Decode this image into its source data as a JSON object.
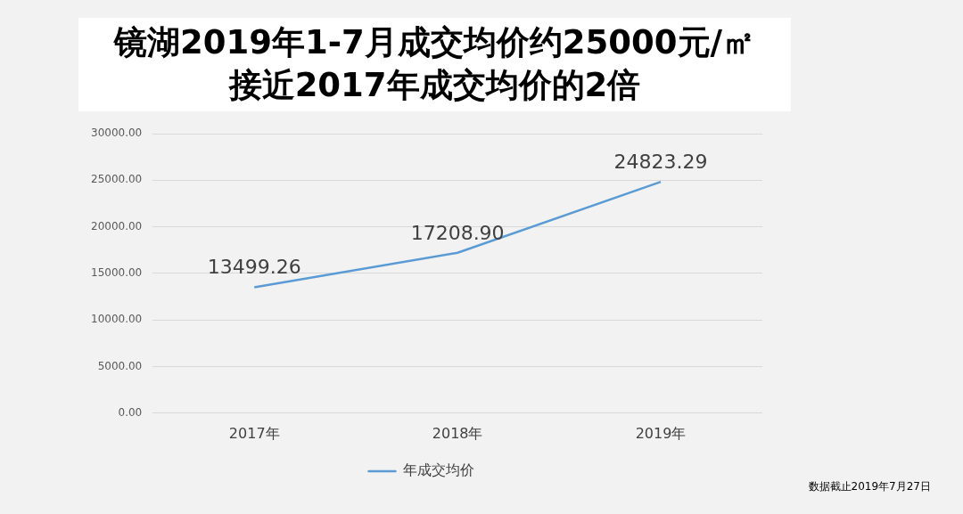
{
  "chart_data": {
    "type": "line",
    "title": "镜湖2019年1-7月成交均价约25000元/㎡接近2017年成交均价的2倍",
    "categories": [
      "2017年",
      "2018年",
      "2019年"
    ],
    "series": [
      {
        "name": "年成交均价",
        "color": "#5b9bd5",
        "values": [
          13499.26,
          17208.9,
          24823.29
        ]
      }
    ],
    "value_labels": [
      "13499.26",
      "17208.90",
      "24823.29"
    ],
    "ylim": [
      0,
      30000
    ],
    "yticks": [
      {
        "value": 0,
        "label": "0.00"
      },
      {
        "value": 5000,
        "label": "5000.00"
      },
      {
        "value": 10000,
        "label": "10000.00"
      },
      {
        "value": 15000,
        "label": "15000.00"
      },
      {
        "value": 20000,
        "label": "20000.00"
      },
      {
        "value": 25000,
        "label": "25000.00"
      },
      {
        "value": 30000,
        "label": "30000.00"
      }
    ],
    "grid": "y",
    "legend": "bottom",
    "marker": "none",
    "line_style": "solid",
    "annotations": [
      "数据截止2019年7月27日"
    ]
  }
}
